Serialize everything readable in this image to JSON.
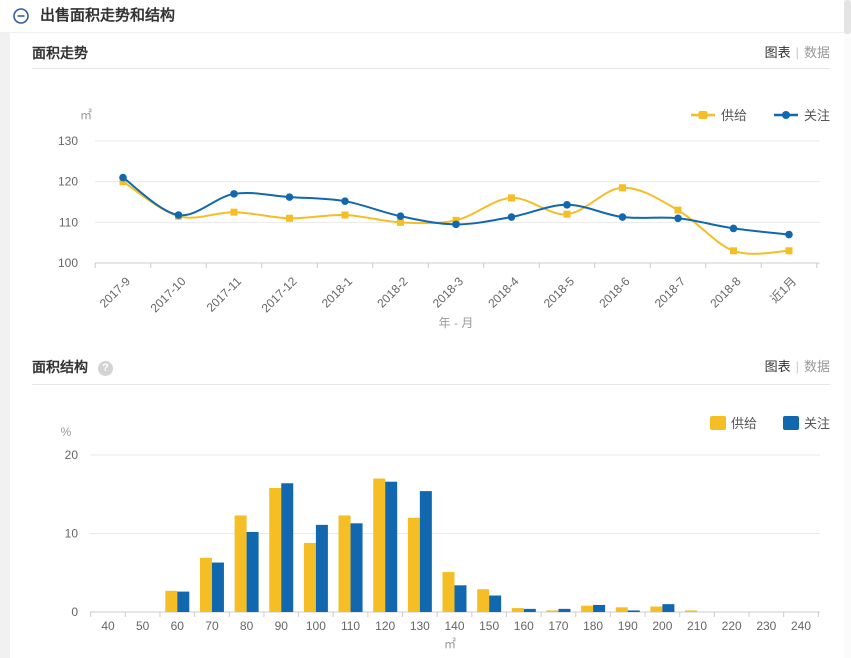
{
  "header": {
    "title": "出售面积走势和结构"
  },
  "panels": [
    {
      "title": "面积走势",
      "tab_chart": "图表",
      "sep": "|",
      "tab_data": "数据"
    },
    {
      "title": "面积结构",
      "help": "?",
      "tab_chart": "图表",
      "sep": "|",
      "tab_data": "数据"
    }
  ],
  "chart_data": [
    {
      "type": "line",
      "title": "面积走势",
      "unit": "㎡",
      "xlabel": "年 - 月",
      "ylim": [
        100,
        130
      ],
      "yticks": [
        100,
        110,
        120,
        130
      ],
      "grid": true,
      "legend_position": "top-right",
      "categories": [
        "2017-9",
        "2017-10",
        "2017-11",
        "2017-12",
        "2018-1",
        "2018-2",
        "2018-3",
        "2018-4",
        "2018-5",
        "2018-6",
        "2018-7",
        "2018-8",
        "近1月"
      ],
      "series": [
        {
          "name": "供给",
          "color": "#F5BE25",
          "symbol": "square",
          "values": [
            120,
            111.5,
            112.5,
            111,
            111.8,
            110,
            110.5,
            116,
            112,
            118.5,
            113,
            103,
            103
          ]
        },
        {
          "name": "关注",
          "color": "#1268AE",
          "symbol": "circle",
          "values": [
            121,
            111.8,
            117,
            116.2,
            115.2,
            111.5,
            109.5,
            111.3,
            114.3,
            111.3,
            111,
            108.5,
            107
          ]
        }
      ]
    },
    {
      "type": "bar",
      "title": "面积结构",
      "unit": "%",
      "xlabel": "㎡",
      "ylim": [
        0,
        20
      ],
      "yticks": [
        0,
        10,
        20
      ],
      "grid": true,
      "legend_position": "top-right",
      "categories": [
        40,
        50,
        60,
        70,
        80,
        90,
        100,
        110,
        120,
        130,
        140,
        150,
        160,
        170,
        180,
        190,
        200,
        210,
        220,
        230,
        240
      ],
      "series": [
        {
          "name": "供给",
          "color": "#F5BE25",
          "values": [
            0,
            0,
            2.7,
            6.9,
            12.3,
            15.8,
            8.8,
            12.3,
            17,
            12,
            5.1,
            2.9,
            0.5,
            0.2,
            0.8,
            0.6,
            0.7,
            0.2,
            0,
            0,
            0
          ]
        },
        {
          "name": "关注",
          "color": "#1268AE",
          "values": [
            0,
            0,
            2.6,
            6.3,
            10.2,
            16.4,
            11.1,
            11.3,
            16.6,
            15.4,
            3.4,
            2.1,
            0.4,
            0.4,
            0.9,
            0.2,
            1.0,
            0,
            0,
            0,
            0
          ]
        }
      ]
    }
  ]
}
